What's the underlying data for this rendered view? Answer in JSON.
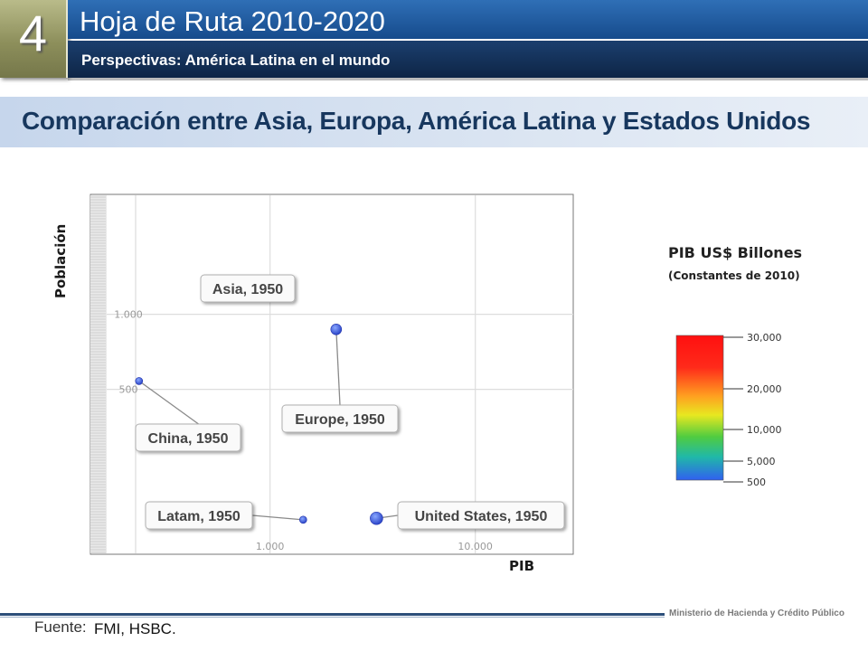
{
  "header": {
    "section_number": "4",
    "title": "Hoja de Ruta 2010-2020",
    "subtitle": "Perspectivas: América Latina en el mundo"
  },
  "section_title": "Comparación entre  Asia, Europa, América Latina y Estados Unidos",
  "colors": {
    "header_blue": "#1f5aa0",
    "header_navy": "#15325a",
    "section_box": "#8c8e5a",
    "title_text": "#17375e",
    "bubble_blue": "#3b5fe0"
  },
  "chart_data": {
    "type": "scatter",
    "xlabel": "PIB",
    "ylabel": "Población",
    "x_scale": "log",
    "y_scale": "log",
    "xlim": [
      160,
      30000
    ],
    "ylim": [
      110,
      3000
    ],
    "x_ticks": [
      {
        "value": 1000,
        "label": "1.000"
      },
      {
        "value": 10000,
        "label": "10.000"
      }
    ],
    "y_ticks": [
      {
        "value": 500,
        "label": "500"
      },
      {
        "value": 1000,
        "label": "1.000"
      }
    ],
    "grid": true,
    "points": [
      {
        "label": "Asia, 1950",
        "x": 720,
        "y": 1350,
        "size": 4
      },
      {
        "label": "Europe, 1950",
        "x": 2100,
        "y": 870,
        "size": 6
      },
      {
        "label": "China, 1950",
        "x": 230,
        "y": 540,
        "size": 4
      },
      {
        "label": "Latam, 1950",
        "x": 1450,
        "y": 150,
        "size": 4
      },
      {
        "label": "United States, 1950",
        "x": 3300,
        "y": 152,
        "size": 7
      }
    ],
    "colorbar": {
      "title": "PIB US$ Billones",
      "subtitle": "(Constantes de 2010)",
      "ticks": [
        {
          "value": 30000,
          "label": "30,000"
        },
        {
          "value": 20000,
          "label": "20,000"
        },
        {
          "value": 10000,
          "label": "10,000"
        },
        {
          "value": 5000,
          "label": "5,000"
        },
        {
          "value": 500,
          "label": "500"
        }
      ],
      "min": 500,
      "max": 30000
    }
  },
  "footer": {
    "source_label": "Fuente:",
    "source_value": "FMI, HSBC.",
    "ministry": "Ministerio de Hacienda y Crédito Público"
  }
}
